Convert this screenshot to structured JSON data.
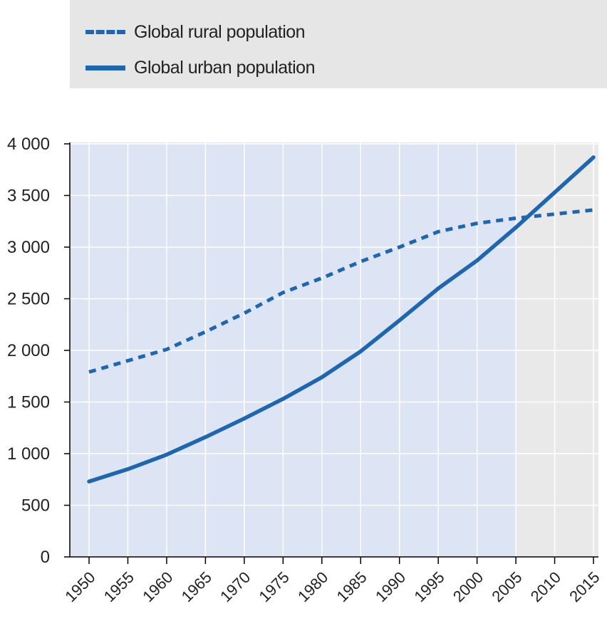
{
  "legend": {
    "rural_label": "Global rural population",
    "urban_label": "Global urban population"
  },
  "colors": {
    "series": "#1f66b1",
    "plot_historic_bg": "#dde4f3",
    "plot_projection_bg": "#e9e9e9",
    "grid": "#ffffff"
  },
  "chart_data": {
    "type": "line",
    "x": [
      1950,
      1955,
      1960,
      1965,
      1970,
      1975,
      1980,
      1985,
      1990,
      1995,
      2000,
      2005,
      2010,
      2015
    ],
    "x_tick_labels": [
      "1950",
      "1955",
      "1960",
      "1965",
      "1970",
      "1975",
      "1980",
      "1985",
      "1990",
      "1995",
      "2000",
      "2005",
      "2010",
      "2015"
    ],
    "series": [
      {
        "name": "Global rural population",
        "style": "dashed",
        "values": [
          1790,
          1900,
          2010,
          2180,
          2360,
          2560,
          2700,
          2860,
          3000,
          3150,
          3230,
          3280,
          3320,
          3360
        ]
      },
      {
        "name": "Global urban population",
        "style": "solid",
        "values": [
          730,
          850,
          990,
          1160,
          1340,
          1530,
          1740,
          1990,
          2290,
          2600,
          2870,
          3190,
          3530,
          3870
        ]
      }
    ],
    "ylim": [
      0,
      4000
    ],
    "y_ticks": [
      0,
      500,
      1000,
      1500,
      2000,
      2500,
      3000,
      3500,
      4000
    ],
    "y_tick_labels": [
      "0",
      "500",
      "1 000",
      "1 500",
      "2 000",
      "2 500",
      "3 000",
      "3 500",
      "4 000"
    ],
    "shaded_until": 2005,
    "grid": true,
    "legend_position": "top",
    "xlabel": "",
    "ylabel": ""
  }
}
